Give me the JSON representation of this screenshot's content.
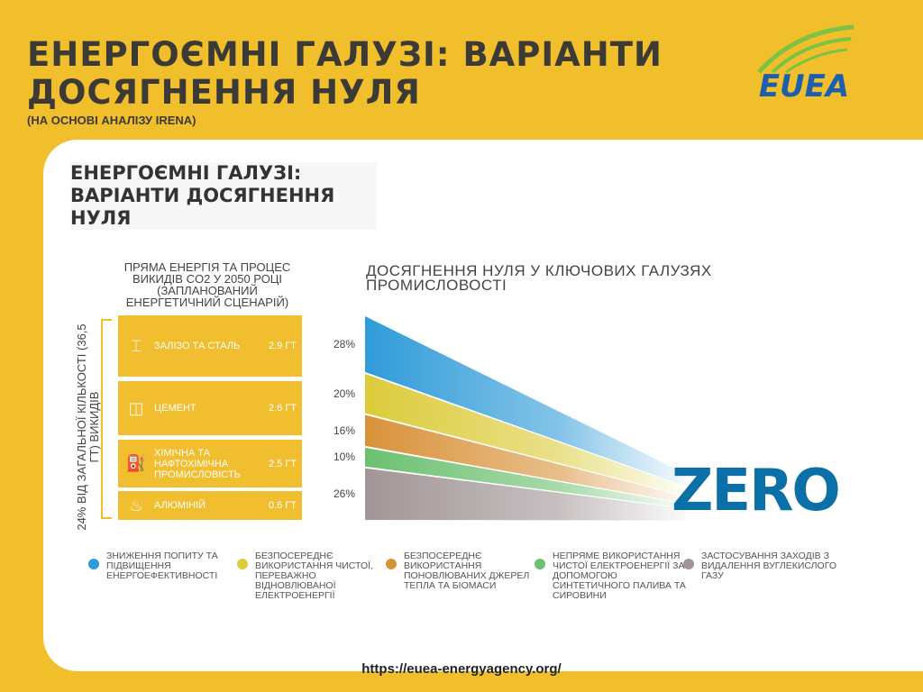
{
  "header": {
    "title_line1": "ЕНЕРГОЄМНІ ГАЛУЗІ: ВАРІАНТИ",
    "title_line2": "ДОСЯГНЕННЯ НУЛЯ",
    "subtitle": "(НА ОСНОВІ АНАЛІЗУ IRENA)",
    "logo_text": "EUEA"
  },
  "card": {
    "title_line1": "ЕНЕРГОЄМНІ ГАЛУЗІ:",
    "title_line2": "ВАРІАНТИ ДОСЯГНЕННЯ НУЛЯ"
  },
  "emissions": {
    "heading": "ПРЯМА ЕНЕРГІЯ ТА ПРОЦЕС ВИКИДІВ CO2 У 2050 РОЦІ (ЗАПЛАНОВАНИЙ ЕНЕРГЕТИЧНИЙ СЦЕНАРІЙ)",
    "side_label": "24% ВІД ЗАГАЛЬНОЇ КІЛЬКОСТІ (36,5 ГТ) ВИКИДІВ",
    "items": [
      {
        "name": "ЗАЛІЗО ТА СТАЛЬ",
        "value": "2.9 ГТ",
        "icon": "steel-beam-icon"
      },
      {
        "name": "ЦЕМЕНТ",
        "value": "2.6 ГТ",
        "icon": "cement-bag-icon"
      },
      {
        "name": "ХІМІЧНА ТА НАФТОХІМІЧНА ПРОМИСЛОВІСТЬ",
        "value": "2.5 ГТ",
        "icon": "chemical-canister-icon"
      },
      {
        "name": "АЛЮМІНІЙ",
        "value": "0.6 ГТ",
        "icon": "aluminium-pour-icon"
      }
    ]
  },
  "chart_data": {
    "type": "area",
    "title": "ДОСЯГНЕННЯ НУЛЯ У КЛЮЧОВИХ ГАЛУЗЯХ ПРОМИСЛОВОСТІ",
    "end_label": "ZERO",
    "series": [
      {
        "name": "ЗНИЖЕННЯ ПОПИТУ ТА ПІДВИЩЕННЯ ЕНЕРГОЕФЕКТИВНОСТІ",
        "value": 28,
        "label": "28%",
        "color": "#2F9BD8"
      },
      {
        "name": "БЕЗПОСЕРЕДНЄ ВИКОРИСТАННЯ ЧИСТОЇ, ПЕРЕВАЖНО ВІДНОВЛЮВАНОЇ ЕЛЕКТРОЕНЕРГІЇ",
        "value": 20,
        "label": "20%",
        "color": "#DCCB3A"
      },
      {
        "name": "БЕЗПОСЕРЕДНЄ ВИКОРИСТАННЯ ПОНОВЛЮВАНИХ ДЖЕРЕЛ ТЕПЛА ТА БІОМАСИ",
        "value": 16,
        "label": "16%",
        "color": "#D9923A"
      },
      {
        "name": "НЕПРЯМЕ ВИКОРИСТАННЯ ЧИСТОЇ ЕЛЕКТРОЕНЕРГІЇ ЗА ДОПОМОГОЮ СИНТЕТИЧНОГО ПАЛИВА ТА СИРОВИНИ",
        "value": 10,
        "label": "10%",
        "color": "#6CC070"
      },
      {
        "name": "ЗАСТОСУВАННЯ ЗАХОДІВ З ВИДАЛЕННЯ ВУГЛЕКИСЛОГО ГАЗУ",
        "value": 26,
        "label": "26%",
        "color": "#A19597"
      }
    ]
  },
  "footer": {
    "url": "https://euea-energyagency.org/"
  }
}
